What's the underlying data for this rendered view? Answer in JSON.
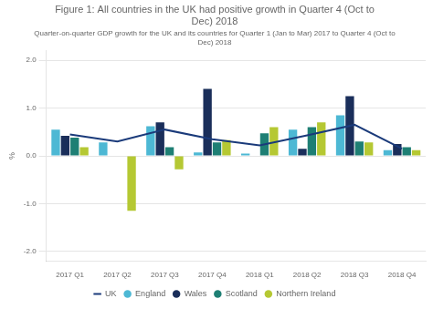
{
  "chart_data": {
    "type": "bar",
    "title": "Figure 1: All countries in the UK had positive growth in Quarter 4 (Oct to\nDec) 2018",
    "subtitle": "Quarter-on-quarter GDP growth for the UK and its countries for Quarter 1 (Jan to Mar) 2017 to Quarter 4 (Oct to\nDec) 2018",
    "ylabel": "%",
    "categories": [
      "2017 Q1",
      "2017 Q2",
      "2017 Q3",
      "2017 Q4",
      "2018 Q1",
      "2018 Q2",
      "2018 Q3",
      "2018 Q4"
    ],
    "series": [
      {
        "name": "England",
        "color": "#4db8d4",
        "marker": "circle",
        "values": [
          0.55,
          0.28,
          0.62,
          0.07,
          0.05,
          0.55,
          0.85,
          0.12
        ]
      },
      {
        "name": "Wales",
        "color": "#1a2e5a",
        "marker": "circle",
        "values": [
          0.42,
          0.0,
          0.7,
          1.4,
          0.0,
          0.15,
          1.25,
          0.25
        ]
      },
      {
        "name": "Scotland",
        "color": "#1e7f74",
        "marker": "circle",
        "values": [
          0.38,
          0.0,
          0.18,
          0.28,
          0.47,
          0.6,
          0.3,
          0.18
        ]
      },
      {
        "name": "Northern Ireland",
        "color": "#b5c833",
        "marker": "circle",
        "values": [
          0.18,
          -1.15,
          -0.28,
          0.33,
          0.6,
          0.7,
          0.28,
          0.12
        ]
      },
      {
        "name": "UK",
        "type": "line",
        "color": "#1a3a7a",
        "values": [
          0.45,
          0.3,
          0.55,
          0.35,
          0.22,
          0.43,
          0.65,
          0.15
        ]
      }
    ],
    "ylim": [
      -2.2,
      2.2
    ],
    "yticks": [
      {
        "value": -2.0,
        "label": "-2.0"
      },
      {
        "value": -1.0,
        "label": "-1.0"
      },
      {
        "value": 0.0,
        "label": "0.0"
      },
      {
        "value": 1.0,
        "label": "1.0"
      },
      {
        "value": 2.0,
        "label": "2.0"
      }
    ],
    "grid": true,
    "legend": "bottom"
  }
}
